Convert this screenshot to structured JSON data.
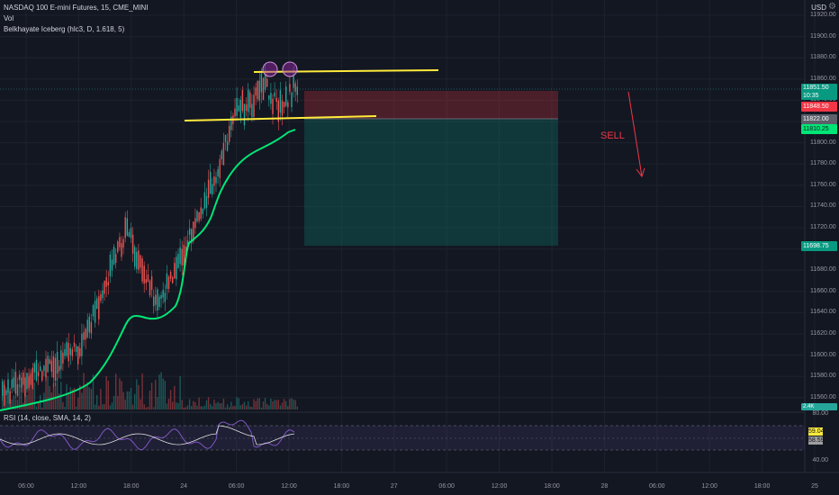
{
  "legend": {
    "symbol_line": "NASDAQ 100 E-mini Futures, 15, CME_MINI",
    "volume_label": "Vol",
    "indicator_label": "Belkhayate Iceberg (hlc3, D, 1.618, 5)"
  },
  "settings_icon": "settings-icon",
  "currency": "USD",
  "price_axis": [
    "11920.00",
    "11900.00",
    "11880.00",
    "11860.00",
    "11840.00",
    "11820.00",
    "11800.00",
    "11780.00",
    "11760.00",
    "11740.00",
    "11720.00",
    "11700.00",
    "11680.00",
    "11660.00",
    "11640.00",
    "11620.00",
    "11600.00",
    "11580.00",
    "11560.00"
  ],
  "price_tags": {
    "current_price": "11851.50",
    "countdown": "10:35",
    "stop_level": "11848.50",
    "entry_level": "11822.00",
    "indicator_value": "11810.25",
    "target_level": "11698.75",
    "volume_value": "2.4K"
  },
  "annotation": {
    "sell_text": "SELL"
  },
  "rsi": {
    "legend": "RSI (14, close, SMA, 14, 2)",
    "axis": [
      "80.00",
      "40.00"
    ],
    "value": "59.04",
    "sma_value": "58.59"
  },
  "time_axis": [
    "06:00",
    "12:00",
    "18:00",
    "24",
    "06:00",
    "12:00",
    "18:00",
    "27",
    "06:00",
    "12:00",
    "18:00",
    "28",
    "06:00",
    "12:00",
    "18:00",
    "25"
  ],
  "colors": {
    "background": "#131722",
    "up": "#26a69a",
    "down": "#ef5350",
    "trend_line": "#ffeb3b",
    "indicator": "#00e676",
    "stop_zone": "#f23645",
    "target_zone": "#089981",
    "sell": "#f23645"
  }
}
